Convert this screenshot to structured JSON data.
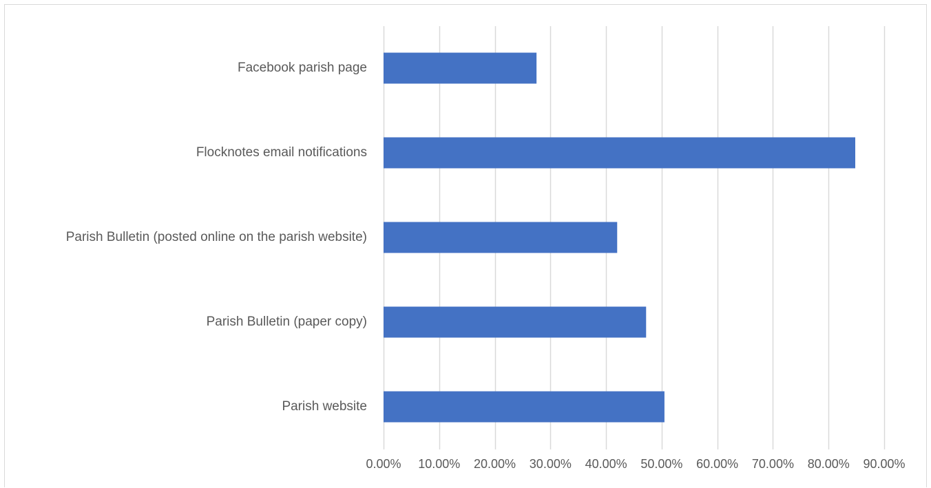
{
  "chart_data": {
    "type": "bar",
    "orientation": "horizontal",
    "title": "",
    "xlabel": "",
    "ylabel": "",
    "categories": [
      "Facebook parish page",
      "Flocknotes email notifications",
      "Parish Bulletin (posted online on the parish website)",
      "Parish Bulletin (paper copy)",
      "Parish website"
    ],
    "values": [
      0.275,
      0.848,
      0.42,
      0.472,
      0.505
    ],
    "xlim": [
      0,
      0.9
    ],
    "xticks": [
      0,
      0.1,
      0.2,
      0.3,
      0.4,
      0.5,
      0.6,
      0.7,
      0.8,
      0.9
    ],
    "xtick_labels": [
      "0.00%",
      "10.00%",
      "20.00%",
      "30.00%",
      "40.00%",
      "50.00%",
      "60.00%",
      "70.00%",
      "80.00%",
      "90.00%"
    ],
    "grid": "vertical",
    "legend": "none",
    "bar_color": "#4472c4",
    "grid_color": "#d9d9d9",
    "text_color": "#595959"
  }
}
